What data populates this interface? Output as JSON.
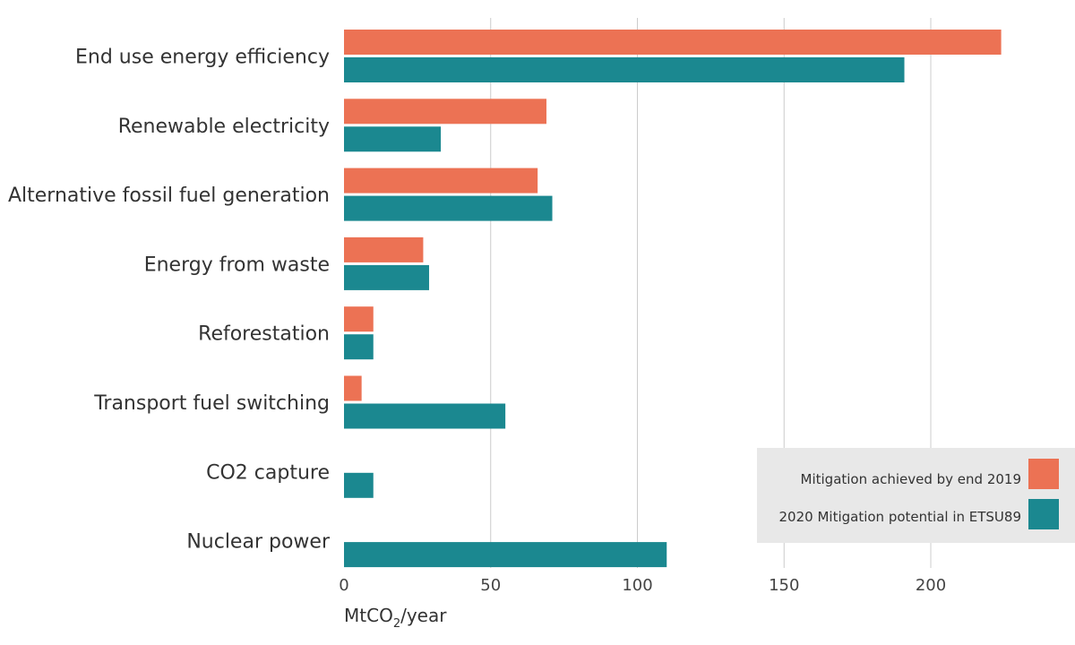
{
  "chart_data": {
    "type": "bar",
    "orientation": "horizontal",
    "categories": [
      "End use energy efficiency",
      "Renewable electricity",
      "Alternative fossil fuel generation",
      "Energy from waste",
      "Reforestation",
      "Transport fuel switching",
      "CO2 capture",
      "Nuclear power"
    ],
    "series": [
      {
        "name": "Mitigation achieved by end 2019",
        "color": "#ec7254",
        "values": [
          224,
          69,
          66,
          27,
          10,
          6,
          0,
          0
        ]
      },
      {
        "name": "2020 Mitigation potential in ETSU89",
        "color": "#1b8890",
        "values": [
          191,
          33,
          71,
          29,
          10,
          55,
          10,
          110
        ]
      }
    ],
    "xlabel": "MtCO",
    "xlabel_subscript": "2",
    "xlabel_suffix": "/year",
    "xticks": [
      0,
      50,
      100,
      150,
      200
    ],
    "xlim": [
      0,
      247
    ],
    "grid": "vertical",
    "legend_position": "bottom-right"
  }
}
